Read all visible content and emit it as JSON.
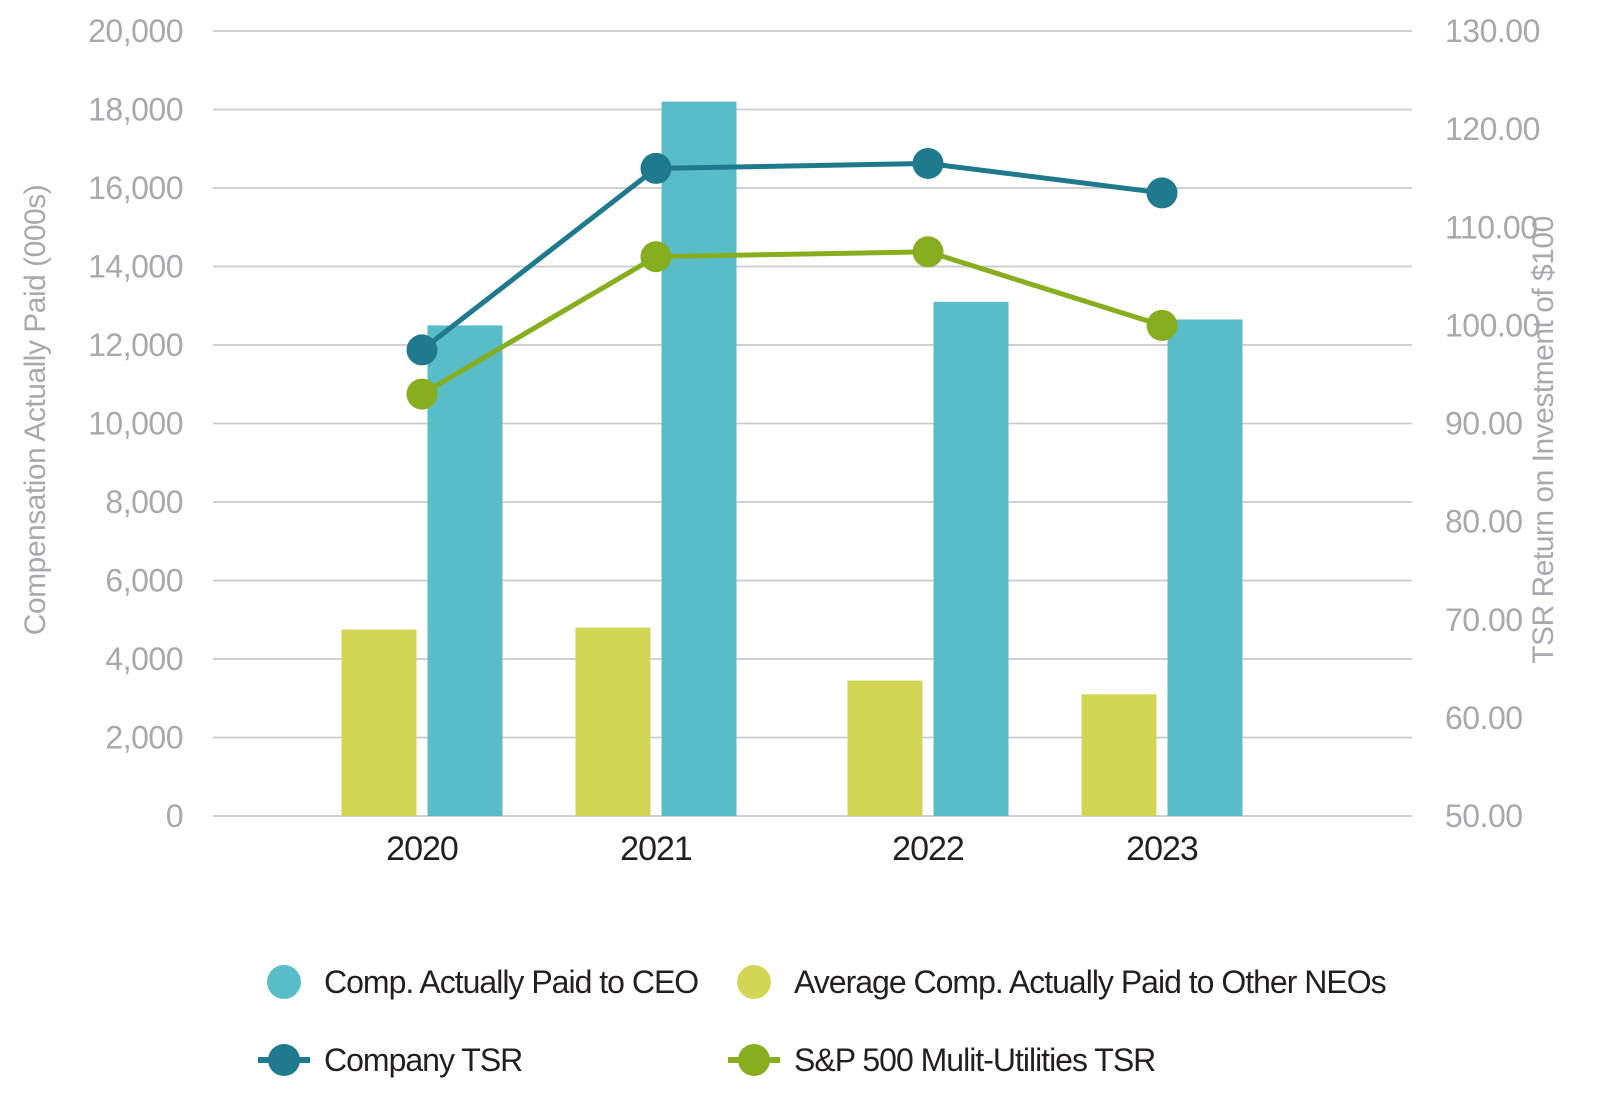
{
  "chart_data": {
    "type": "combo-bar-line",
    "categories": [
      "2020",
      "2021",
      "2022",
      "2023"
    ],
    "left_axis": {
      "title": "Compensation Actually Paid (000s)",
      "min": 0,
      "max": 20000,
      "step": 2000,
      "tick_labels": [
        "0",
        "2,000",
        "4,000",
        "6,000",
        "8,000",
        "10,000",
        "12,000",
        "14,000",
        "16,000",
        "18,000",
        "20,000"
      ]
    },
    "right_axis": {
      "title": "TSR Return on Investment of $100",
      "min": 50,
      "max": 130,
      "step": 10,
      "tick_labels": [
        "50.00",
        "60.00",
        "70.00",
        "80.00",
        "90.00",
        "100.00",
        "110.00",
        "120.00",
        "130.00"
      ]
    },
    "bar_series": [
      {
        "name": "Comp. Actually Paid to CEO",
        "color": "#58BDC8",
        "axis": "left",
        "values": [
          12500,
          18200,
          13100,
          12650
        ]
      },
      {
        "name": "Average Comp. Actually Paid to Other NEOs",
        "color": "#D1D755",
        "axis": "left",
        "values": [
          4750,
          4800,
          3450,
          3100
        ]
      }
    ],
    "line_series": [
      {
        "name": "Company TSR",
        "color": "#1E7A8C",
        "axis": "right",
        "values": [
          97.5,
          116,
          116.5,
          113.5
        ]
      },
      {
        "name": "S&P 500 Mulit-Utilities TSR",
        "color": "#87AE1E",
        "axis": "right",
        "values": [
          93,
          107,
          107.5,
          100
        ]
      }
    ],
    "grid": "horizontal",
    "legend_position": "bottom",
    "colors": {
      "grid": "#C9CACC",
      "axis_text": "#A7A9AC",
      "category_text": "#231F20",
      "background": "#FFFFFF"
    }
  }
}
